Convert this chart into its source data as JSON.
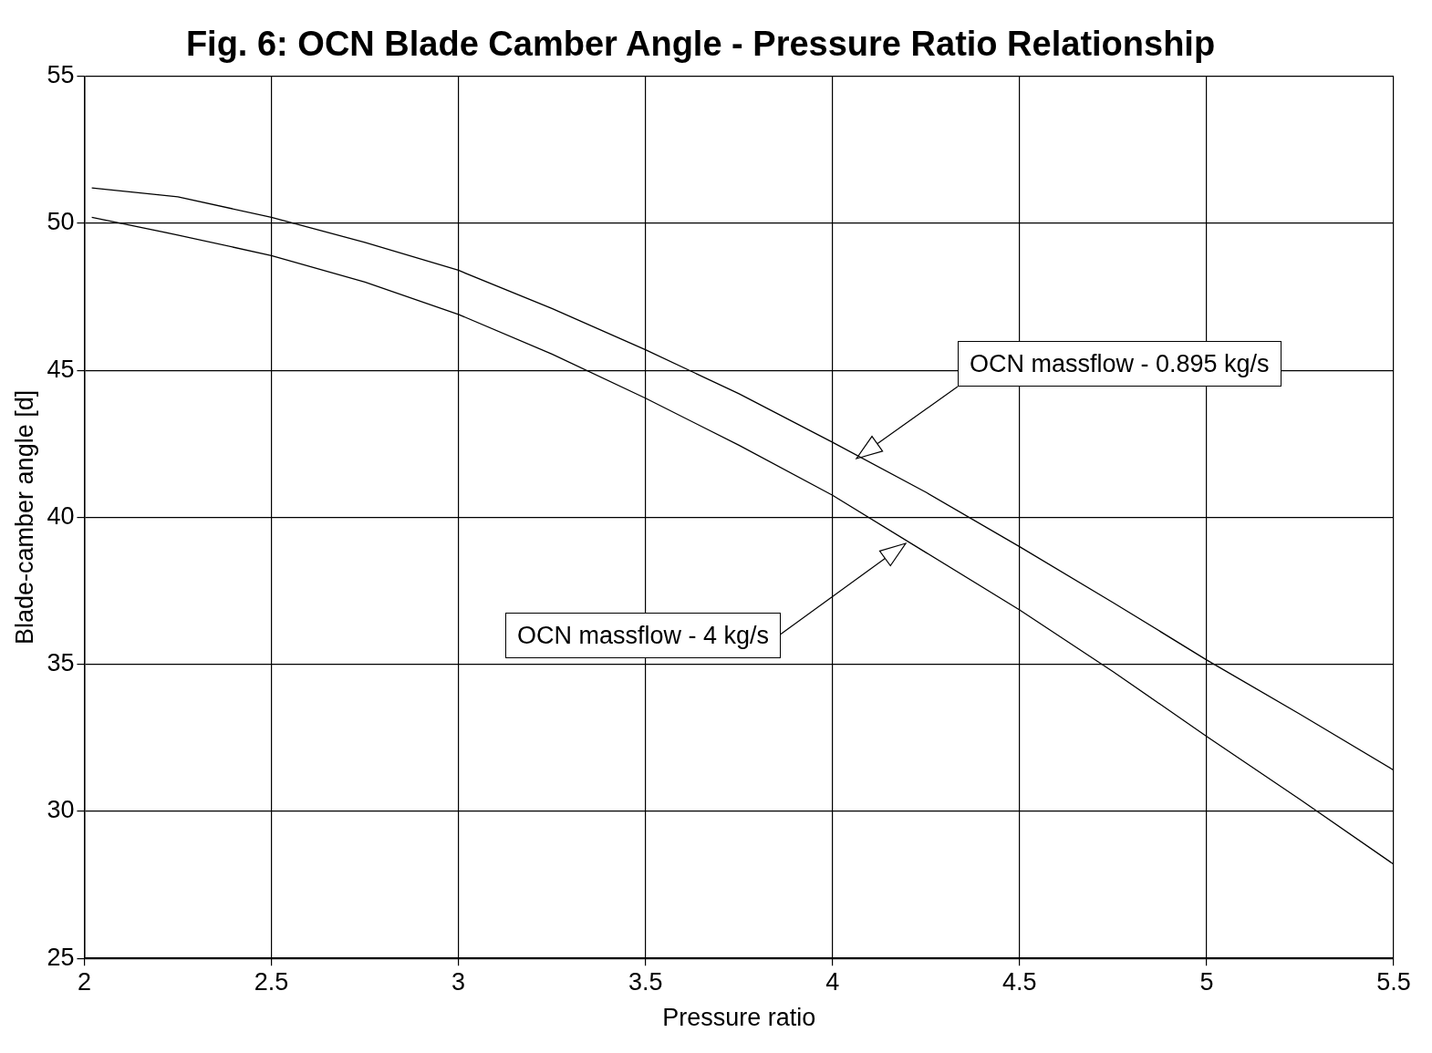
{
  "chart_data": {
    "type": "line",
    "title": "Fig. 6: OCN Blade Camber Angle - Pressure Ratio Relationship",
    "xlabel": "Pressure ratio",
    "ylabel": "Blade-camber angle [d]",
    "xlim": [
      2,
      5.5
    ],
    "xticks": [
      2,
      2.5,
      3,
      3.5,
      4,
      4.5,
      5,
      5.5
    ],
    "ylim": [
      25,
      55
    ],
    "yticks": [
      25,
      30,
      35,
      40,
      45,
      50,
      55
    ],
    "grid": true,
    "legend": false,
    "marker": "none",
    "line_style": "solid",
    "series": [
      {
        "color": "#000000",
        "x": [
          2.02,
          2.25,
          2.5,
          2.75,
          3,
          3.25,
          3.5,
          3.75,
          4,
          4.25,
          4.5,
          4.75,
          5,
          5.25,
          5.5
        ],
        "values": [
          51.2,
          50.9,
          50.2,
          49.35,
          48.4,
          47.1,
          45.7,
          44.2,
          42.55,
          40.85,
          39.0,
          37.1,
          35.15,
          33.3,
          31.4
        ]
      },
      {
        "color": "#000000",
        "x": [
          2.02,
          2.25,
          2.5,
          2.75,
          3,
          3.25,
          3.5,
          3.75,
          4,
          4.25,
          4.5,
          4.75,
          5,
          5.25,
          5.5
        ],
        "values": [
          50.2,
          49.6,
          48.9,
          48.0,
          46.9,
          45.55,
          44.05,
          42.45,
          40.75,
          38.8,
          36.85,
          34.75,
          32.55,
          30.4,
          28.2
        ]
      }
    ],
    "annotations": [
      "OCN massflow - 0.895 kg/s",
      "OCN massflow - 4 kg/s"
    ]
  }
}
